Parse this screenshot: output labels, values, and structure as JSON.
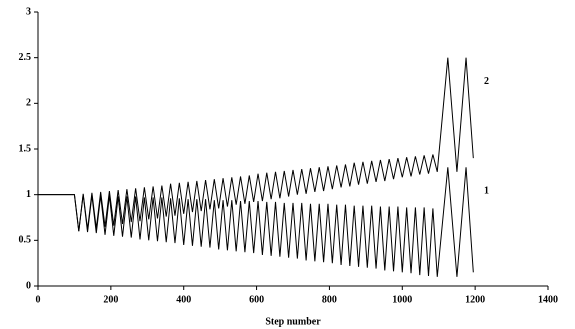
{
  "chart_data": {
    "type": "line",
    "x_label": "Step number",
    "x": [
      0,
      100,
      112,
      124,
      136,
      148,
      160,
      172,
      184,
      196,
      208,
      220,
      232,
      244,
      256,
      268,
      280,
      292,
      304,
      316,
      328,
      340,
      352,
      364,
      376,
      388,
      400,
      412,
      424,
      436,
      448,
      460,
      472,
      484,
      496,
      508,
      520,
      532,
      544,
      556,
      568,
      580,
      592,
      604,
      616,
      628,
      640,
      652,
      664,
      676,
      688,
      700,
      712,
      724,
      736,
      748,
      760,
      772,
      784,
      796,
      808,
      820,
      832,
      844,
      856,
      868,
      880,
      892,
      904,
      916,
      928,
      940,
      952,
      964,
      976,
      988,
      1000,
      1012,
      1024,
      1036,
      1048,
      1060,
      1072,
      1084,
      1096,
      1125,
      1150,
      1175,
      1195
    ],
    "series": [
      {
        "name": "1",
        "color": "#000000",
        "values": [
          1,
          1,
          0.6,
          1.0,
          0.59,
          0.99,
          0.58,
          0.99,
          0.56,
          0.99,
          0.55,
          0.98,
          0.54,
          0.98,
          0.53,
          0.98,
          0.51,
          0.97,
          0.5,
          0.97,
          0.49,
          0.97,
          0.48,
          0.96,
          0.47,
          0.96,
          0.45,
          0.95,
          0.44,
          0.95,
          0.43,
          0.95,
          0.42,
          0.94,
          0.4,
          0.94,
          0.39,
          0.94,
          0.38,
          0.93,
          0.37,
          0.93,
          0.36,
          0.93,
          0.34,
          0.92,
          0.33,
          0.92,
          0.32,
          0.91,
          0.31,
          0.91,
          0.3,
          0.91,
          0.28,
          0.9,
          0.27,
          0.9,
          0.26,
          0.9,
          0.25,
          0.89,
          0.23,
          0.89,
          0.22,
          0.88,
          0.21,
          0.88,
          0.2,
          0.88,
          0.19,
          0.87,
          0.17,
          0.87,
          0.16,
          0.87,
          0.15,
          0.86,
          0.14,
          0.86,
          0.12,
          0.86,
          0.11,
          0.85,
          0.1,
          1.3,
          0.1,
          1.3,
          0.15
        ]
      },
      {
        "name": "2",
        "color": "#000000",
        "values": [
          1,
          1,
          0.6,
          1.01,
          0.62,
          1.02,
          0.63,
          1.03,
          0.65,
          1.04,
          0.66,
          1.05,
          0.68,
          1.06,
          0.7,
          1.07,
          0.71,
          1.08,
          0.73,
          1.09,
          0.74,
          1.1,
          0.76,
          1.12,
          0.77,
          1.13,
          0.79,
          1.14,
          0.81,
          1.15,
          0.82,
          1.16,
          0.84,
          1.17,
          0.85,
          1.18,
          0.87,
          1.19,
          0.89,
          1.2,
          0.9,
          1.21,
          0.92,
          1.23,
          0.93,
          1.24,
          0.95,
          1.25,
          0.96,
          1.26,
          0.98,
          1.27,
          1.0,
          1.28,
          1.01,
          1.29,
          1.03,
          1.3,
          1.04,
          1.31,
          1.06,
          1.32,
          1.08,
          1.33,
          1.09,
          1.35,
          1.11,
          1.36,
          1.12,
          1.37,
          1.14,
          1.38,
          1.15,
          1.39,
          1.17,
          1.4,
          1.19,
          1.41,
          1.2,
          1.42,
          1.22,
          1.43,
          1.23,
          1.44,
          1.25,
          2.5,
          1.25,
          2.5,
          1.4
        ]
      }
    ],
    "xlim": [
      0,
      1400
    ],
    "xticks": [
      0,
      200,
      400,
      600,
      800,
      1000,
      1200,
      1400
    ],
    "ylim": [
      0,
      3
    ],
    "yticks": [
      0,
      0.5,
      1,
      1.5,
      2,
      2.5,
      3
    ],
    "grid": false
  }
}
